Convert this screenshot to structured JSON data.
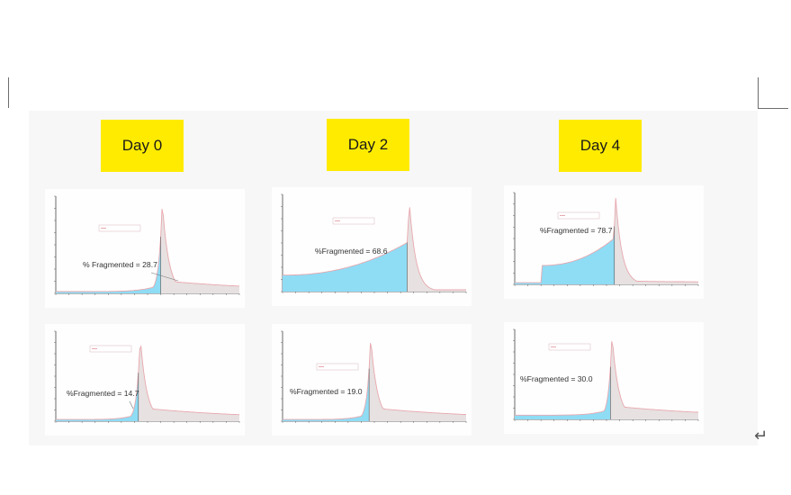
{
  "labels": {
    "day0": "Day 0",
    "day2": "Day 2",
    "day4": "Day 4"
  },
  "colors": {
    "fragment_fill": "#8fdcf5",
    "intact_fill": "#e7e1e1",
    "trace": "#e8a8ae",
    "highlight": "#ffeb00"
  },
  "chart_data": [
    {
      "id": "c0",
      "type": "area",
      "annotation": "% Fragmented = 28.7",
      "value": 28.7
    },
    {
      "id": "c1",
      "type": "area",
      "annotation": "%Fragmented = 68.6",
      "value": 68.6
    },
    {
      "id": "c2",
      "type": "area",
      "annotation": "%Fragmented = 78.7",
      "value": 78.7
    },
    {
      "id": "c3",
      "type": "area",
      "annotation": "%Fragmented = 14.7",
      "value": 14.7
    },
    {
      "id": "c4",
      "type": "area",
      "annotation": "%Fragmented = 19.0",
      "value": 19.0
    },
    {
      "id": "c5",
      "type": "area",
      "annotation": "%Fragmented = 30.0",
      "value": 30.0
    }
  ]
}
